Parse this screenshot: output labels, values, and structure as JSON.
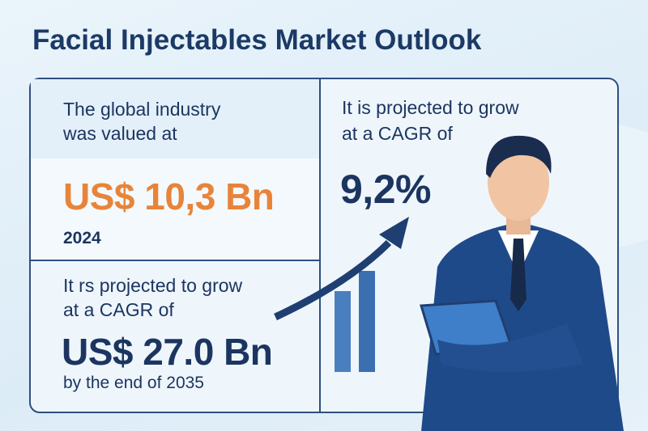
{
  "header": {
    "title": "Facial Injectables Market Outlook"
  },
  "panels": [
    {
      "label_lines": [
        "The global industry",
        "was valued at"
      ],
      "value": "US$ 10,3 Bn",
      "note": "2024"
    },
    {
      "label_lines": [
        "It rs projected to grow",
        "at a CAGR of"
      ],
      "value": "US$ 27.0 Bn",
      "note": "by the end of 2035"
    },
    {
      "label_lines": [
        "It is projected to grow",
        "at a CAGR of"
      ],
      "value": "9,2%"
    }
  ]
}
